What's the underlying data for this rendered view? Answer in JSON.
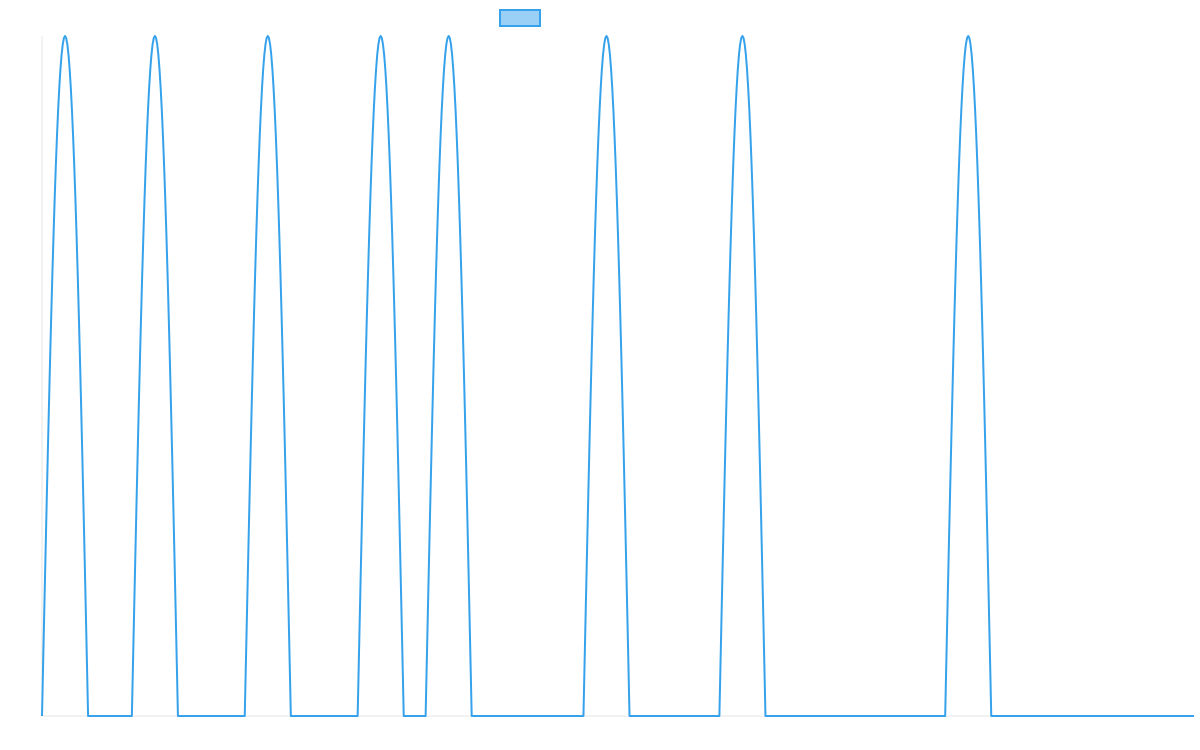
{
  "chart_data": {
    "type": "line",
    "title": "",
    "xlabel": "",
    "ylabel": "",
    "legend": {
      "placement": "top-center",
      "entries": [
        {
          "name": "",
          "color": "#36a2eb",
          "fill": "#9ad0f5"
        }
      ]
    },
    "grid": false,
    "xlim": [
      0,
      100
    ],
    "ylim": [
      0,
      1
    ],
    "series": [
      {
        "name": "",
        "color": "#36a2eb",
        "peak_x": [
          2,
          9.8,
          19.6,
          29.4,
          35.3,
          49,
          60.8,
          80.4
        ],
        "peak_half_width": 2,
        "peak_value": 1,
        "baseline_value": 0
      }
    ]
  }
}
